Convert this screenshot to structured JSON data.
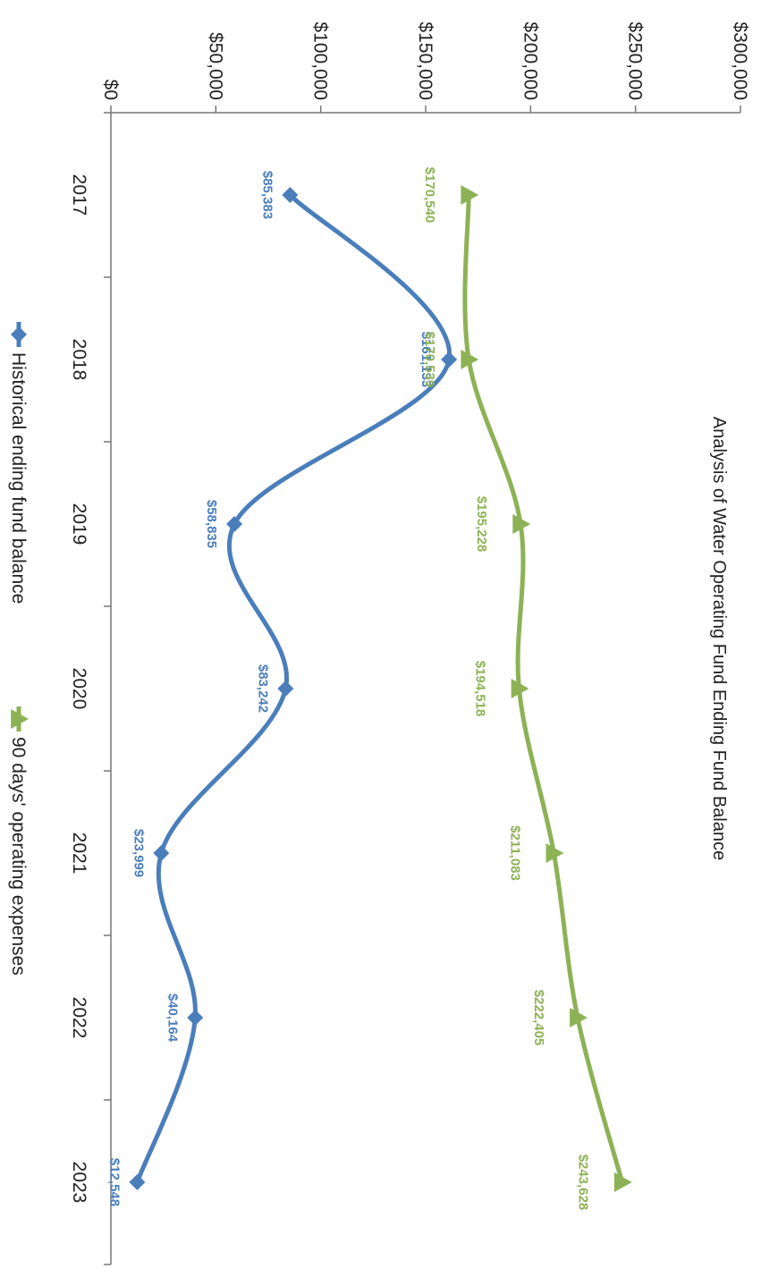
{
  "chart_data": {
    "type": "line",
    "title": "Analysis of Water Operating Fund Ending Fund Balance",
    "categories": [
      "2017",
      "2018",
      "2019",
      "2020",
      "2021",
      "2022",
      "2023"
    ],
    "ylim": [
      0,
      300000
    ],
    "yticks": [
      "$0",
      "$50,000",
      "$100,000",
      "$150,000",
      "$200,000",
      "$250,000",
      "$300,000"
    ],
    "ytick_values": [
      0,
      50000,
      100000,
      150000,
      200000,
      250000,
      300000
    ],
    "legend_position": "bottom",
    "grid": false,
    "series": [
      {
        "name": "Historical ending fund balance",
        "color": "#4a7ebb",
        "marker": "diamond",
        "values": [
          85383,
          161133,
          58835,
          83242,
          23999,
          40164,
          12548
        ],
        "labels": [
          "$85,383",
          "$161,133",
          "$58,835",
          "$83,242",
          "$23,999",
          "$40,164",
          "$12,548"
        ]
      },
      {
        "name": "90 days' operating expenses",
        "color": "#8db255",
        "marker": "triangle",
        "values": [
          170540,
          170539,
          195228,
          194518,
          211083,
          222405,
          243628
        ],
        "labels": [
          "$170,540",
          "$170,539",
          "$195,228",
          "$194,518",
          "$211,083",
          "$222,405",
          "$243,628"
        ]
      }
    ]
  }
}
